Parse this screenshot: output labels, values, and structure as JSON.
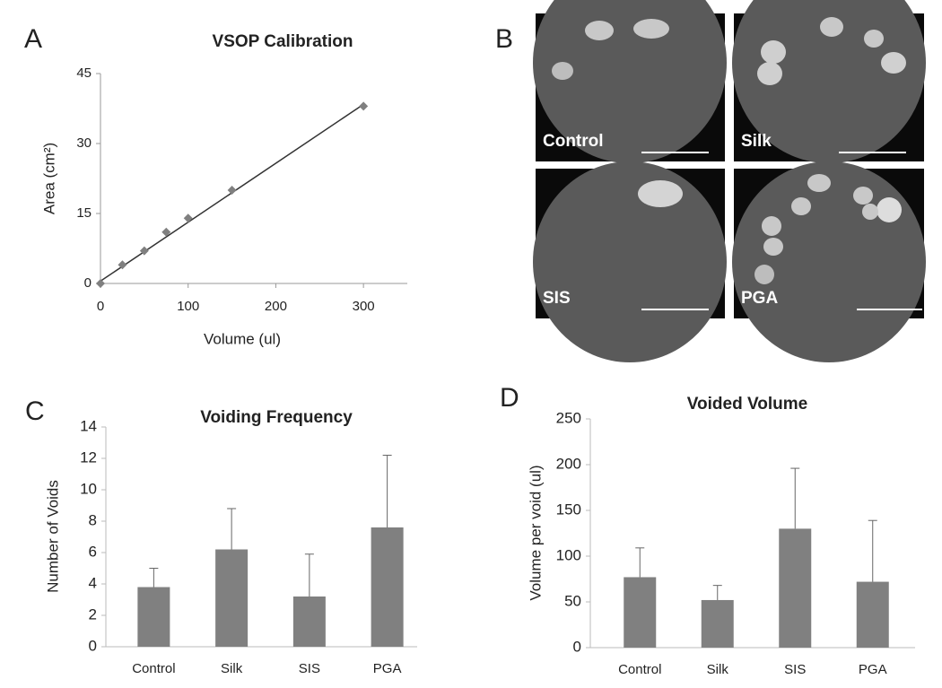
{
  "chart_data": [
    {
      "type": "scatter",
      "panel_label": "A",
      "title": "VSOP Calibration",
      "xlabel": "Volume (ul)",
      "ylabel": "Area (cm²)",
      "x": [
        0,
        25,
        50,
        75,
        100,
        150,
        300
      ],
      "y": [
        0,
        4,
        7,
        11,
        14,
        20,
        38
      ],
      "fit": {
        "x": [
          0,
          300
        ],
        "y": [
          0.5,
          38.4
        ]
      },
      "color": "#808080",
      "fit_color": "#333333",
      "xlim": [
        0,
        350
      ],
      "xticks": [
        0,
        100,
        200,
        300
      ],
      "ylim": [
        0,
        45
      ],
      "yticks": [
        0,
        15,
        30,
        45
      ]
    },
    {
      "type": "bar",
      "panel_label": "C",
      "title": "Voiding Frequency",
      "ylabel": "Number of Voids",
      "categories": [
        "Control",
        "Silk",
        "SIS",
        "PGA"
      ],
      "values": [
        3.8,
        6.2,
        3.2,
        7.6
      ],
      "errors": [
        1.2,
        2.6,
        2.7,
        4.6
      ],
      "color": "#808080",
      "ylim": [
        0,
        14
      ],
      "yticks": [
        0,
        2,
        4,
        6,
        8,
        10,
        12,
        14
      ]
    },
    {
      "type": "bar",
      "panel_label": "D",
      "title": "Voided Volume",
      "ylabel": "Volume per void (ul)",
      "categories": [
        "Control",
        "Silk",
        "SIS",
        "PGA"
      ],
      "values": [
        77,
        52,
        130,
        72
      ],
      "errors": [
        32,
        16,
        66,
        67
      ],
      "color": "#808080",
      "ylim": [
        0,
        250
      ],
      "yticks": [
        0,
        50,
        100,
        150,
        200,
        250
      ]
    }
  ],
  "images": {
    "panel_label": "B",
    "labels": [
      "Control",
      "Silk",
      "SIS",
      "PGA"
    ]
  }
}
